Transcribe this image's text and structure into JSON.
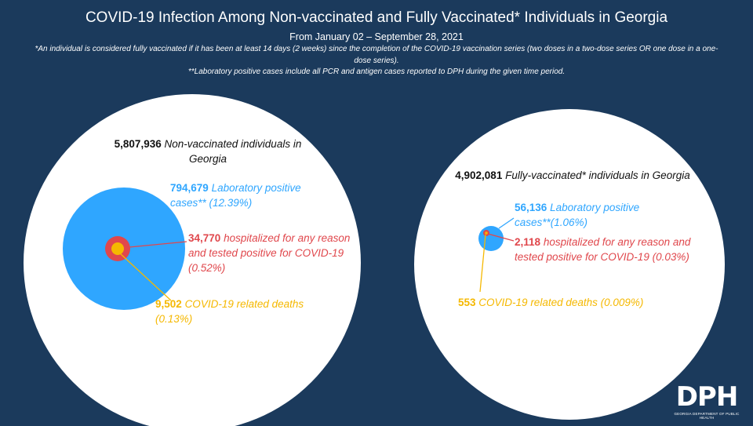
{
  "title": "COVID-19 Infection Among Non-vaccinated and Fully Vaccinated* Individuals in Georgia",
  "subtitle": "From January 02 – September 28, 2021",
  "footnote1": "*An individual is considered fully vaccinated if it has been at least 14 days (2 weeks) since the completion of the COVID-19 vaccination series (two doses in a two-dose series OR one dose in a one-dose series).",
  "footnote2": "**Laboratory positive cases include all PCR and antigen cases reported to DPH during the given time period.",
  "colors": {
    "background": "#1b3a5c",
    "population_circle": "#ffffff",
    "lab_positive": "#2fa6ff",
    "hospitalized": "#e0474c",
    "deaths": "#f5b800"
  },
  "non_vaccinated": {
    "population_value": "5,807,936",
    "population_label": "Non-vaccinated individuals in Georgia",
    "lab_value": "794,679",
    "lab_label": "Laboratory positive cases** (12.39%)",
    "hosp_value": "34,770",
    "hosp_label": "hospitalized for any reason and tested positive for COVID-19 (0.52%)",
    "deaths_value": "9,502",
    "deaths_label": "COVID-19 related deaths (0.13%)"
  },
  "fully_vaccinated": {
    "population_value": "4,902,081",
    "population_label": "Fully-vaccinated* individuals in Georgia",
    "lab_value": "56,136",
    "lab_label": "Laboratory positive cases**(1.06%)",
    "hosp_value": "2,118",
    "hosp_label": "hospitalized for any reason and tested positive for COVID-19 (0.03%)",
    "deaths_value": "553",
    "deaths_label": "COVID-19 related deaths (0.009%)"
  },
  "logo": {
    "text": "DPH",
    "subtext": "GEORGIA DEPARTMENT OF PUBLIC HEALTH"
  }
}
